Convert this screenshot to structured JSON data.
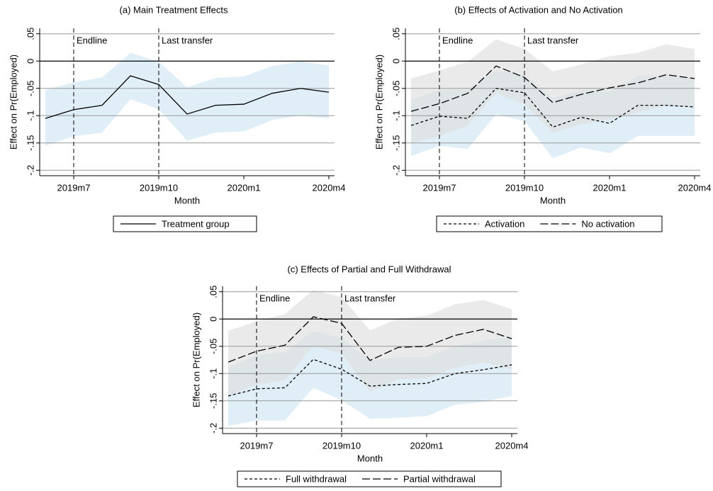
{
  "chart_data": [
    {
      "type": "line",
      "title": "(a) Main Treatment Effects",
      "x_label": "Month",
      "y_label": "Effect on Pr(Employed)",
      "categories": [
        null,
        "2019m7",
        null,
        null,
        "2019m10",
        null,
        null,
        "2020m1",
        null,
        null,
        "2020m4"
      ],
      "ylim": [
        -0.21,
        0.06
      ],
      "yticks": [
        {
          "value": 0.05,
          "label": ".05"
        },
        0,
        {
          "value": -0.05,
          "label": "-.05"
        },
        {
          "value": -0.1,
          "label": "-.1"
        },
        {
          "value": -0.15,
          "label": "-.15"
        },
        {
          "value": -0.2,
          "label": "-.2"
        }
      ],
      "grid": true,
      "zero_line": true,
      "vlines": [
        {
          "at": "2019m7",
          "label": "Endline"
        },
        {
          "at": "2019m10",
          "label": "Last transfer"
        }
      ],
      "series": [
        {
          "name": "Treatment group",
          "color": "#000000",
          "dash": "solid",
          "band_color": "#cfe6f2",
          "values": [
            -0.105,
            -0.089,
            -0.081,
            -0.027,
            -0.043,
            -0.097,
            -0.081,
            -0.079,
            -0.059,
            -0.05,
            -0.057
          ],
          "lower": [
            -0.155,
            -0.138,
            -0.131,
            -0.07,
            -0.088,
            -0.146,
            -0.131,
            -0.129,
            -0.108,
            -0.1,
            -0.105
          ],
          "upper": [
            -0.053,
            -0.039,
            -0.03,
            0.015,
            -0.001,
            -0.048,
            -0.031,
            -0.028,
            -0.009,
            -0.001,
            -0.008
          ]
        }
      ]
    },
    {
      "type": "line",
      "title": "(b) Effects of Activation and No Activation",
      "x_label": "Month",
      "y_label": "Effect on Pr(Employed)",
      "categories": [
        null,
        "2019m7",
        null,
        null,
        "2019m10",
        null,
        null,
        "2020m1",
        null,
        null,
        "2020m4"
      ],
      "ylim": [
        -0.21,
        0.06
      ],
      "yticks": [
        {
          "value": 0.05,
          "label": ".05"
        },
        0,
        {
          "value": -0.05,
          "label": "-.05"
        },
        {
          "value": -0.1,
          "label": "-.1"
        },
        {
          "value": -0.15,
          "label": "-.15"
        },
        {
          "value": -0.2,
          "label": "-.2"
        }
      ],
      "grid": true,
      "zero_line": true,
      "vlines": [
        {
          "at": "2019m7",
          "label": "Endline"
        },
        {
          "at": "2019m10",
          "label": "Last transfer"
        }
      ],
      "series": [
        {
          "name": "Activation",
          "color": "#000000",
          "dash": "short",
          "band_color": "#cfe6f2",
          "values": [
            -0.118,
            -0.101,
            -0.105,
            -0.05,
            -0.058,
            -0.121,
            -0.103,
            -0.114,
            -0.081,
            -0.081,
            -0.084
          ],
          "lower": [
            -0.174,
            -0.155,
            -0.161,
            -0.097,
            -0.11,
            -0.178,
            -0.158,
            -0.169,
            -0.137,
            -0.137,
            -0.137
          ],
          "upper": [
            -0.071,
            -0.053,
            -0.053,
            -0.017,
            -0.025,
            -0.068,
            -0.053,
            -0.056,
            -0.027,
            -0.027,
            -0.03
          ]
        },
        {
          "name": "No activation",
          "color": "#000000",
          "dash": "long",
          "band_color": "#dedede",
          "values": [
            -0.092,
            -0.078,
            -0.059,
            -0.009,
            -0.03,
            -0.076,
            -0.061,
            -0.049,
            -0.04,
            -0.025,
            -0.032
          ],
          "lower": [
            -0.151,
            -0.138,
            -0.118,
            -0.059,
            -0.079,
            -0.131,
            -0.116,
            -0.107,
            -0.094,
            -0.081,
            -0.085
          ],
          "upper": [
            -0.032,
            -0.017,
            -0.001,
            0.04,
            0.022,
            -0.019,
            -0.006,
            0.009,
            0.015,
            0.031,
            0.022
          ]
        }
      ]
    },
    {
      "type": "line",
      "title": "(c) Effects of Partial and Full Withdrawal",
      "x_label": "Month",
      "y_label": "Effect on Pr(Employed)",
      "categories": [
        null,
        "2019m7",
        null,
        null,
        "2019m10",
        null,
        null,
        "2020m1",
        null,
        null,
        "2020m4"
      ],
      "ylim": [
        -0.21,
        0.06
      ],
      "yticks": [
        {
          "value": 0.05,
          "label": ".05"
        },
        0,
        {
          "value": -0.05,
          "label": "-.05"
        },
        {
          "value": -0.1,
          "label": "-.1"
        },
        {
          "value": -0.15,
          "label": "-.15"
        },
        {
          "value": -0.2,
          "label": "-.2"
        }
      ],
      "grid": true,
      "zero_line": true,
      "vlines": [
        {
          "at": "2019m7",
          "label": "Endline"
        },
        {
          "at": "2019m10",
          "label": "Last transfer"
        }
      ],
      "series": [
        {
          "name": "Full withdrawal",
          "color": "#000000",
          "dash": "short",
          "band_color": "#cfe6f2",
          "values": [
            -0.141,
            -0.128,
            -0.126,
            -0.074,
            -0.092,
            -0.123,
            -0.12,
            -0.118,
            -0.1,
            -0.093,
            -0.084
          ],
          "lower": [
            -0.196,
            -0.186,
            -0.186,
            -0.126,
            -0.149,
            -0.183,
            -0.181,
            -0.178,
            -0.157,
            -0.152,
            -0.141
          ],
          "upper": [
            -0.089,
            -0.066,
            -0.061,
            -0.022,
            -0.035,
            -0.076,
            -0.07,
            -0.07,
            -0.05,
            -0.04,
            -0.032
          ]
        },
        {
          "name": "Partial withdrawal",
          "color": "#000000",
          "dash": "long",
          "band_color": "#dedede",
          "values": [
            -0.079,
            -0.059,
            -0.048,
            0.004,
            -0.008,
            -0.076,
            -0.052,
            -0.05,
            -0.03,
            -0.019,
            -0.036
          ],
          "lower": [
            -0.141,
            -0.12,
            -0.112,
            -0.05,
            -0.063,
            -0.133,
            -0.11,
            -0.109,
            -0.089,
            -0.079,
            -0.092
          ],
          "upper": [
            -0.022,
            -0.004,
            0.009,
            0.053,
            0.04,
            -0.021,
            0.001,
            0.006,
            0.027,
            0.035,
            0.018
          ]
        }
      ]
    }
  ]
}
